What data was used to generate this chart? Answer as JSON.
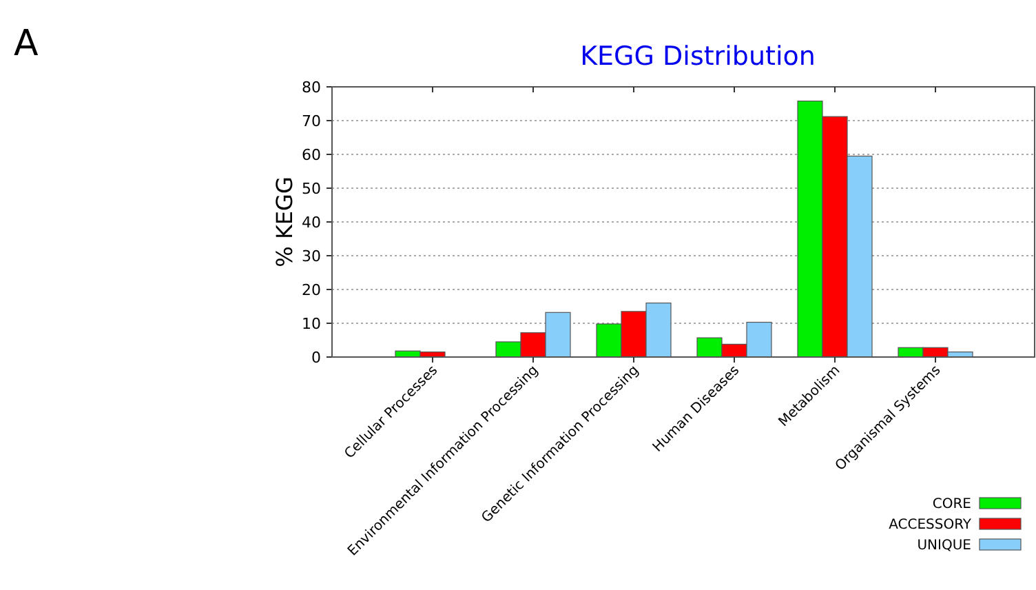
{
  "chart_data": {
    "type": "bar",
    "title": "KEGG Distribution",
    "ylabel": "% KEGG",
    "annotations": [
      "A"
    ],
    "categories": [
      "Cellular Processes",
      "Environmental Information Processing",
      "Genetic Information Processing",
      "Human Diseases",
      "Metabolism",
      "Organismal Systems"
    ],
    "series": [
      {
        "name": "CORE",
        "color": "#00ee00",
        "values": [
          1.8,
          4.5,
          9.8,
          5.7,
          75.8,
          2.8
        ]
      },
      {
        "name": "ACCESSORY",
        "color": "#ff0000",
        "values": [
          1.5,
          7.2,
          13.5,
          3.8,
          71.2,
          2.8
        ]
      },
      {
        "name": "UNIQUE",
        "color": "#87cefa",
        "values": [
          0,
          13.2,
          16,
          10.3,
          59.5,
          1.5
        ]
      }
    ],
    "ylim": [
      0,
      80
    ],
    "yticks": [
      0,
      10,
      20,
      30,
      40,
      50,
      60,
      70,
      80
    ],
    "grid": "y",
    "legend": "bottom right"
  }
}
